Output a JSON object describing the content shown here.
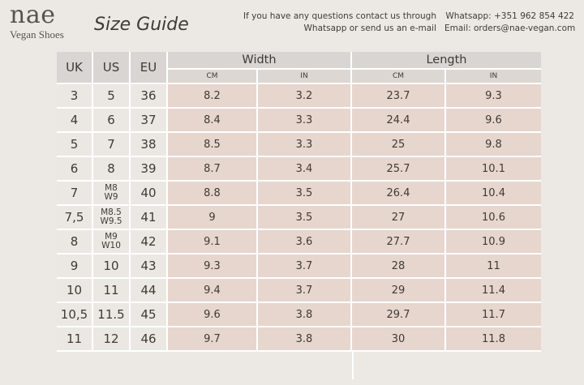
{
  "header": {
    "logo_mark": "nae",
    "logo_sub": "Vegan Shoes",
    "title": "Size Guide",
    "contact_line1": "If you have any questions contact us through",
    "contact_line2": "Whatsapp or send us an e-mail",
    "whatsapp": "Whatsapp: +351 962 854 422",
    "email": "Email: orders@nae-vegan.com"
  },
  "table": {
    "headers": {
      "uk": "UK",
      "us": "US",
      "eu": "EU",
      "width": "Width",
      "length": "Length",
      "cm": "CM",
      "in": "IN"
    },
    "rows": [
      {
        "uk": "3",
        "us": [
          "5"
        ],
        "eu": "36",
        "w_cm": "8.2",
        "w_in": "3.2",
        "l_cm": "23.7",
        "l_in": "9.3"
      },
      {
        "uk": "4",
        "us": [
          "6"
        ],
        "eu": "37",
        "w_cm": "8.4",
        "w_in": "3.3",
        "l_cm": "24.4",
        "l_in": "9.6"
      },
      {
        "uk": "5",
        "us": [
          "7"
        ],
        "eu": "38",
        "w_cm": "8.5",
        "w_in": "3.3",
        "l_cm": "25",
        "l_in": "9.8"
      },
      {
        "uk": "6",
        "us": [
          "8"
        ],
        "eu": "39",
        "w_cm": "8.7",
        "w_in": "3.4",
        "l_cm": "25.7",
        "l_in": "10.1"
      },
      {
        "uk": "7",
        "us": [
          "M8",
          "W9"
        ],
        "eu": "40",
        "w_cm": "8.8",
        "w_in": "3.5",
        "l_cm": "26.4",
        "l_in": "10.4"
      },
      {
        "uk": "7,5",
        "us": [
          "M8.5",
          "W9.5"
        ],
        "eu": "41",
        "w_cm": "9",
        "w_in": "3.5",
        "l_cm": "27",
        "l_in": "10.6"
      },
      {
        "uk": "8",
        "us": [
          "M9",
          "W10"
        ],
        "eu": "42",
        "w_cm": "9.1",
        "w_in": "3.6",
        "l_cm": "27.7",
        "l_in": "10.9"
      },
      {
        "uk": "9",
        "us": [
          "10"
        ],
        "eu": "43",
        "w_cm": "9.3",
        "w_in": "3.7",
        "l_cm": "28",
        "l_in": "11"
      },
      {
        "uk": "10",
        "us": [
          "11"
        ],
        "eu": "44",
        "w_cm": "9.4",
        "w_in": "3.7",
        "l_cm": "29",
        "l_in": "11.4"
      },
      {
        "uk": "10,5",
        "us": [
          "11.5"
        ],
        "eu": "45",
        "w_cm": "9.6",
        "w_in": "3.8",
        "l_cm": "29.7",
        "l_in": "11.7"
      },
      {
        "uk": "11",
        "us": [
          "12"
        ],
        "eu": "46",
        "w_cm": "9.7",
        "w_in": "3.8",
        "l_cm": "30",
        "l_in": "11.8"
      }
    ]
  }
}
